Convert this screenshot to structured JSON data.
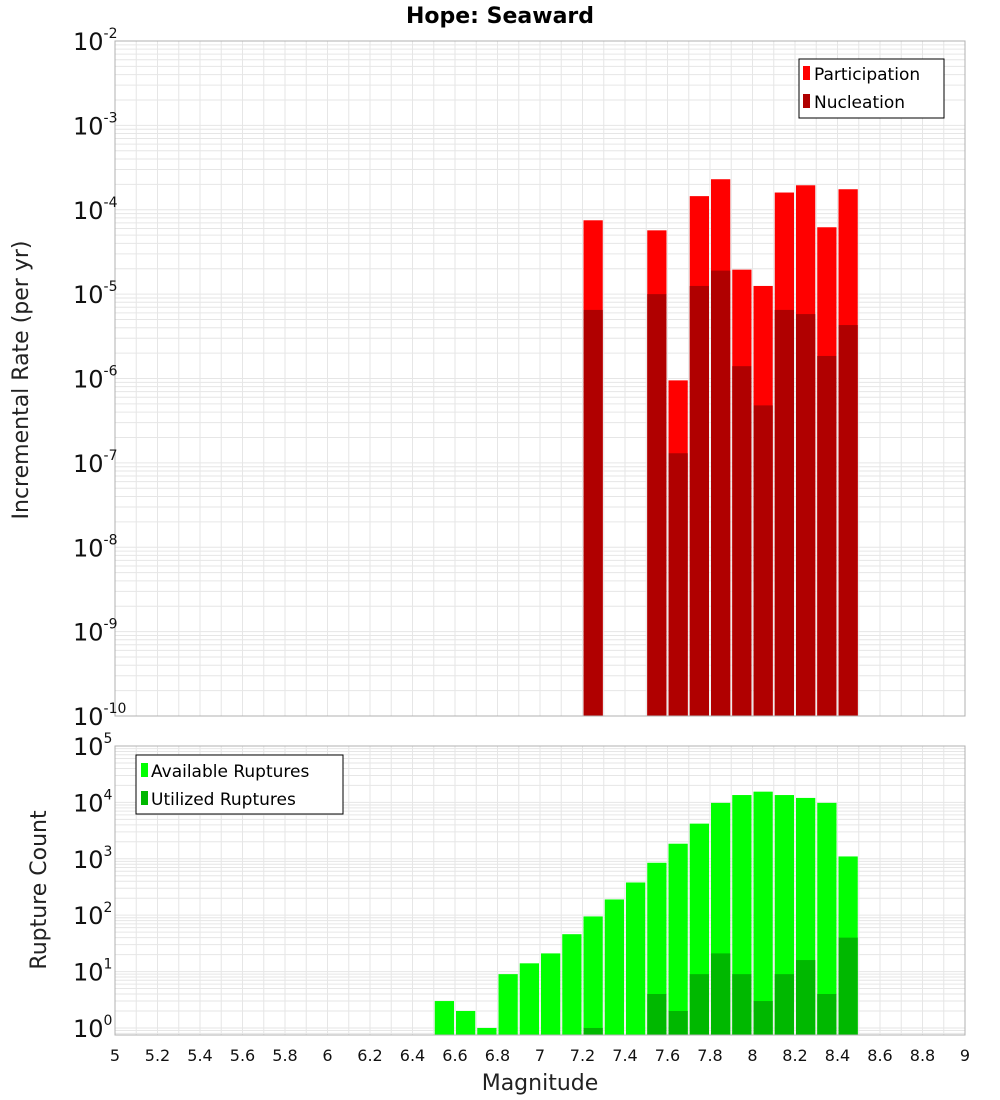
{
  "chart_data": [
    {
      "type": "bar",
      "title": "Hope: Seaward",
      "xlabel": "",
      "ylabel": "Incremental Rate (per yr)",
      "yscale": "log",
      "ylim": [
        1e-10,
        0.01
      ],
      "xlim": [
        5,
        9
      ],
      "bin_width": 0.1,
      "grid": true,
      "legend_position": "top-right",
      "legend": [
        "Participation",
        "Nucleation"
      ],
      "x": [
        7.25,
        7.55,
        7.65,
        7.75,
        7.85,
        7.95,
        8.05,
        8.15,
        8.25,
        8.35,
        8.45
      ],
      "series": [
        {
          "name": "Participation",
          "color": "#ff0000",
          "values": [
            7.5e-05,
            5.7e-05,
            9.5e-07,
            0.000145,
            0.00023,
            1.95e-05,
            1.25e-05,
            0.00016,
            0.000195,
            6.2e-05,
            0.000175
          ]
        },
        {
          "name": "Nucleation",
          "color": "#b00000",
          "values": [
            6.5e-06,
            1e-05,
            1.3e-07,
            1.25e-05,
            1.9e-05,
            1.4e-06,
            4.8e-07,
            6.5e-06,
            5.8e-06,
            1.85e-06,
            4.3e-06
          ]
        }
      ]
    },
    {
      "type": "bar",
      "title": "",
      "xlabel": "Magnitude",
      "ylabel": "Rupture Count",
      "yscale": "log",
      "ylim": [
        0.75,
        100000.0
      ],
      "xlim": [
        5,
        9
      ],
      "bin_width": 0.1,
      "grid": true,
      "legend_position": "top-left",
      "legend": [
        "Available Ruptures",
        "Utilized Ruptures"
      ],
      "x_ticks": [
        "5",
        "5.2",
        "5.4",
        "5.6",
        "5.8",
        "6",
        "6.2",
        "6.4",
        "6.6",
        "6.8",
        "7",
        "7.2",
        "7.4",
        "7.6",
        "7.8",
        "8",
        "8.2",
        "8.4",
        "8.6",
        "8.8",
        "9"
      ],
      "series": [
        {
          "name": "Available Ruptures",
          "color": "#00ff00",
          "x": [
            6.55,
            6.65,
            6.75,
            6.85,
            6.95,
            7.05,
            7.15,
            7.25,
            7.35,
            7.45,
            7.55,
            7.65,
            7.75,
            7.85,
            7.95,
            8.05,
            8.15,
            8.25,
            8.35,
            8.45
          ],
          "values": [
            3,
            2,
            1,
            9,
            14,
            21,
            46,
            95,
            190,
            380,
            850,
            1850,
            4200,
            9800,
            13500,
            15500,
            13500,
            12000,
            9800,
            1100
          ]
        },
        {
          "name": "Utilized Ruptures",
          "color": "#00b800",
          "x": [
            7.25,
            7.55,
            7.65,
            7.75,
            7.85,
            7.95,
            8.05,
            8.15,
            8.25,
            8.35,
            8.45
          ],
          "values": [
            1,
            4,
            2,
            9,
            21,
            9,
            3,
            9,
            16,
            4,
            40
          ]
        }
      ]
    }
  ],
  "colors": {
    "grid": "#e6e6e6",
    "frame": "#b0b0b0",
    "text": "#111111"
  }
}
